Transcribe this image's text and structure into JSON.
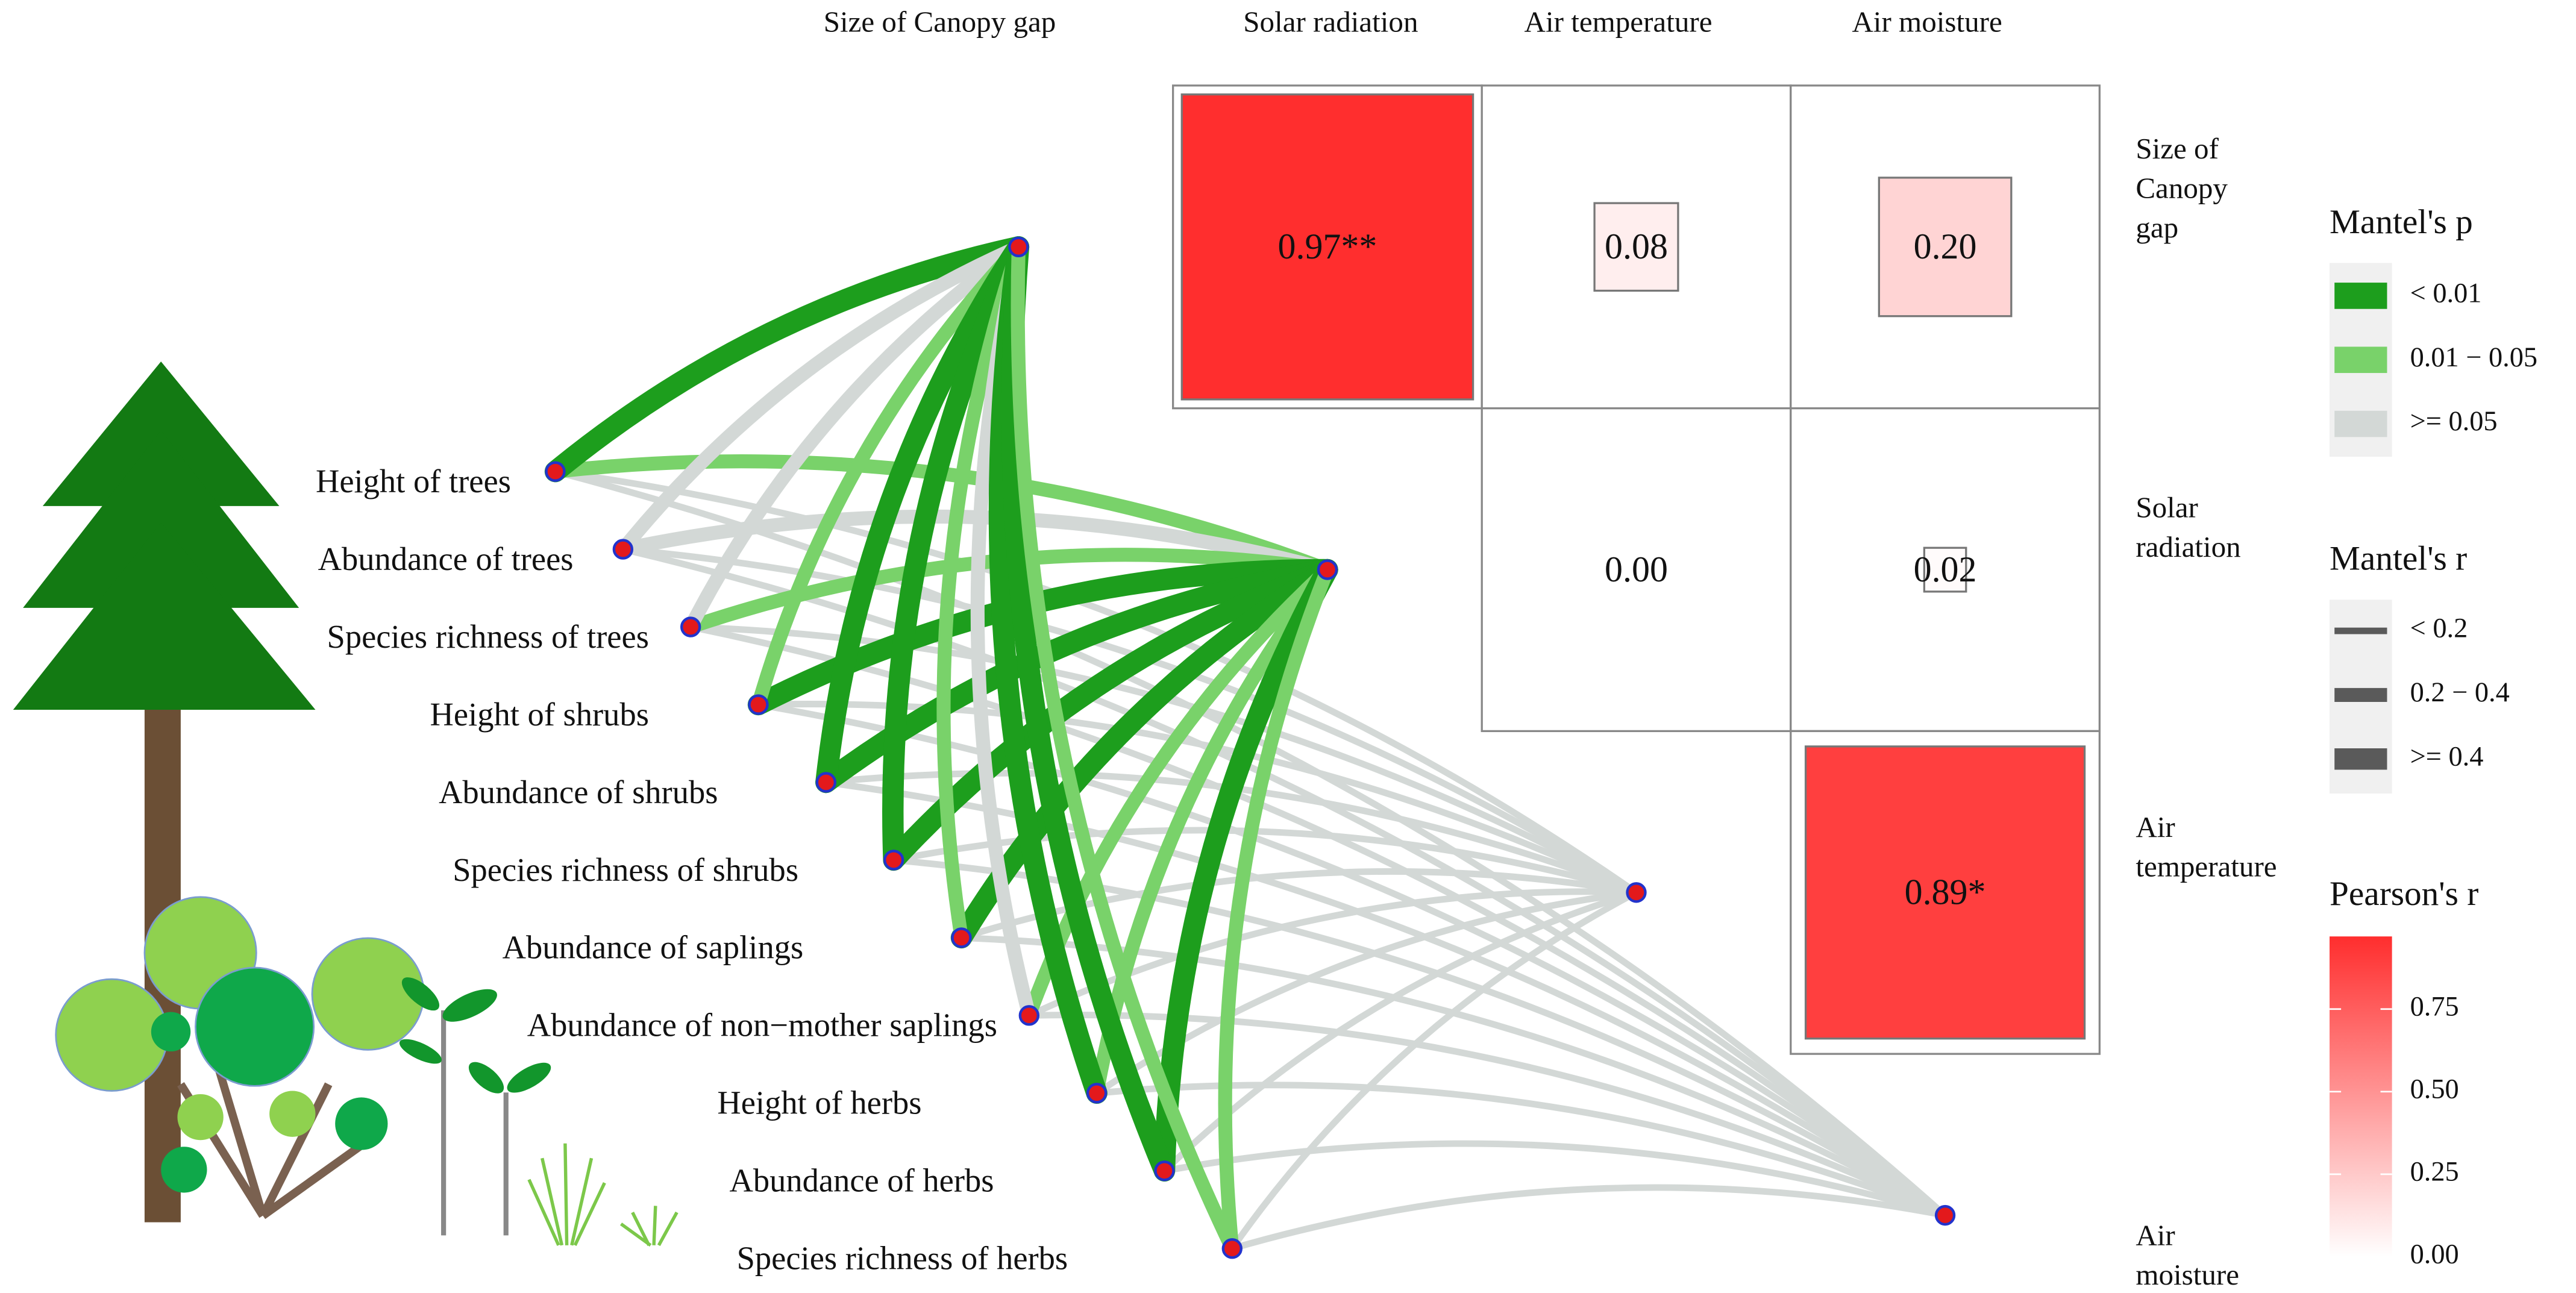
{
  "chart_data": {
    "type": "mantel",
    "env_vars": [
      "Size of Canopy gap",
      "Solar radiation",
      "Air temperature",
      "Air moisture"
    ],
    "row_labels": [
      [
        "Size of",
        "Canopy",
        "gap"
      ],
      [
        "Solar",
        "radiation"
      ],
      [
        "Air",
        "temperature"
      ],
      [
        "Air",
        "moisture"
      ]
    ],
    "species": [
      "Height of trees",
      "Abundance of trees",
      "Species richness of trees",
      "Height of shrubs",
      "Abundance of shrubs",
      "Species richness of shrubs",
      "Abundance of saplings",
      "Abundance of non−mother saplings",
      "Height of herbs",
      "Abundance of herbs",
      "Species richness of herbs"
    ],
    "pearson": [
      [
        null,
        0.97,
        0.08,
        0.2
      ],
      [
        null,
        null,
        0.0,
        0.02
      ],
      [
        null,
        null,
        null,
        0.89
      ],
      [
        null,
        null,
        null,
        null
      ]
    ],
    "value_labels": [
      [
        null,
        "0.97**",
        "0.08",
        "0.20"
      ],
      [
        null,
        null,
        "0.00",
        "0.02"
      ],
      [
        null,
        null,
        null,
        "0.89*"
      ],
      [
        null,
        null,
        null,
        null
      ]
    ],
    "mantel_p_title": "Mantel's p",
    "mantel_p_legend": [
      {
        "label": "< 0.01",
        "color": "#1d9e1d"
      },
      {
        "label": "0.01 − 0.05",
        "color": "#79d26a"
      },
      {
        "label": ">= 0.05",
        "color": "#d3d8d6"
      }
    ],
    "mantel_r_title": "Mantel's r",
    "mantel_r_legend": [
      {
        "label": "< 0.2"
      },
      {
        "label": "0.2 − 0.4"
      },
      {
        "label": ">= 0.4"
      }
    ],
    "mantel_p": [
      [
        "< 0.01",
        ">= 0.05",
        ">= 0.05",
        "0.01 − 0.05",
        "< 0.01",
        "< 0.01",
        "0.01 − 0.05",
        ">= 0.05",
        "< 0.01",
        "< 0.01",
        "0.01 − 0.05"
      ],
      [
        "0.01 − 0.05",
        ">= 0.05",
        "0.01 − 0.05",
        "< 0.01",
        "< 0.01",
        "< 0.01",
        "< 0.01",
        "0.01 − 0.05",
        "0.01 − 0.05",
        "< 0.01",
        "0.01 − 0.05"
      ],
      [
        ">= 0.05",
        ">= 0.05",
        ">= 0.05",
        ">= 0.05",
        ">= 0.05",
        ">= 0.05",
        ">= 0.05",
        ">= 0.05",
        ">= 0.05",
        ">= 0.05",
        ">= 0.05"
      ],
      [
        ">= 0.05",
        ">= 0.05",
        ">= 0.05",
        ">= 0.05",
        ">= 0.05",
        ">= 0.05",
        ">= 0.05",
        ">= 0.05",
        ">= 0.05",
        ">= 0.05",
        ">= 0.05"
      ]
    ],
    "mantel_r": [
      [
        ">= 0.4",
        "0.2 − 0.4",
        "0.2 − 0.4",
        "0.2 − 0.4",
        ">= 0.4",
        ">= 0.4",
        "0.2 − 0.4",
        "0.2 − 0.4",
        ">= 0.4",
        ">= 0.4",
        "0.2 − 0.4"
      ],
      [
        "0.2 − 0.4",
        "0.2 − 0.4",
        "0.2 − 0.4",
        ">= 0.4",
        ">= 0.4",
        ">= 0.4",
        ">= 0.4",
        "0.2 − 0.4",
        "0.2 − 0.4",
        ">= 0.4",
        "0.2 − 0.4"
      ],
      [
        "< 0.2",
        "< 0.2",
        "< 0.2",
        "< 0.2",
        "< 0.2",
        "< 0.2",
        "< 0.2",
        "< 0.2",
        "< 0.2",
        "< 0.2",
        "< 0.2"
      ],
      [
        "< 0.2",
        "< 0.2",
        "< 0.2",
        "< 0.2",
        "< 0.2",
        "< 0.2",
        "< 0.2",
        "< 0.2",
        "< 0.2",
        "< 0.2",
        "< 0.2"
      ]
    ],
    "colorbar_title": "Pearson's r",
    "colormap": [
      "#ffffff",
      "#ff2e2e"
    ],
    "colorbar_lim": [
      0,
      0.97
    ],
    "colorbar_ticks": [
      {
        "value": 0,
        "label": "0.00"
      },
      {
        "value": 0.25,
        "label": "0.25"
      },
      {
        "value": 0.5,
        "label": "0.50"
      },
      {
        "value": 0.75,
        "label": "0.75"
      }
    ]
  }
}
